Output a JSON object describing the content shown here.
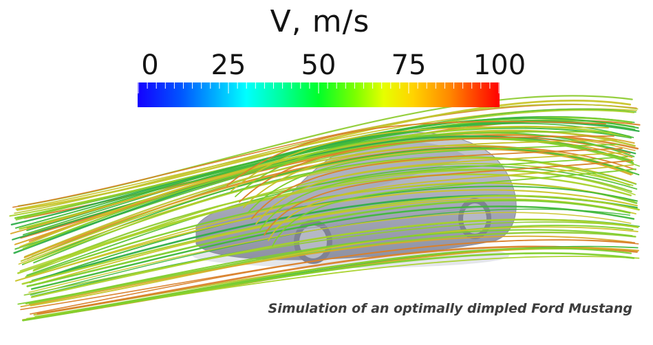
{
  "legend": {
    "title": "V, m/s",
    "ticks": [
      "0",
      "25",
      "50",
      "75",
      "100"
    ],
    "range": [
      0,
      100
    ]
  },
  "caption": "Simulation of an optimally dimpled Ford Mustang",
  "colors": {
    "car_body": "#a9acbd",
    "background": "#ffffff",
    "text": "#141414"
  },
  "icons": [
    "car-model",
    "streamlines",
    "color-scale-bar"
  ]
}
